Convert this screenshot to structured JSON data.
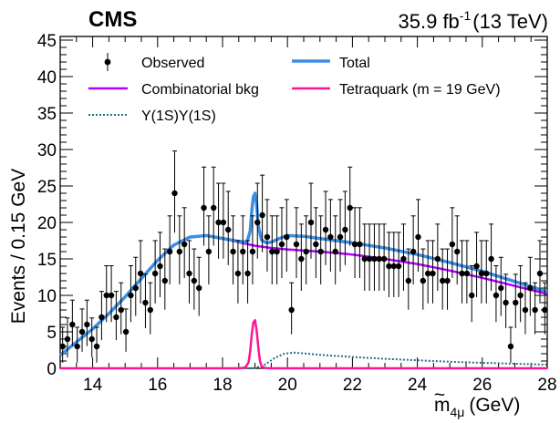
{
  "header": {
    "experiment": "CMS",
    "lumi_value": "35.9 fb",
    "lumi_exp": "-1",
    "energy": "(13 TeV)"
  },
  "chart_data": {
    "type": "scatter",
    "xlabel_main": "m",
    "xlabel_sub": "4μ",
    "xlabel_accent": "~",
    "xlabel_unit": "(GeV)",
    "ylabel": "Events / 0.15 GeV",
    "xlim": [
      13,
      28
    ],
    "ylim": [
      0,
      45.5
    ],
    "x_ticks": [
      14,
      16,
      18,
      20,
      22,
      24,
      26,
      28
    ],
    "y_ticks": [
      0,
      5,
      10,
      15,
      20,
      25,
      30,
      35,
      40,
      45
    ],
    "legend": {
      "placement": "top",
      "observed": "Observed",
      "total": "Total",
      "combinatorial": "Combinatorial bkg",
      "tetraquark": "Tetraquark (m = 19 GeV)",
      "upsilon": "Υ(1S)Υ(1S)"
    },
    "colors": {
      "observed": "#000000",
      "total": "#3b8fe6",
      "combinatorial": "#b300ff",
      "tetraquark": "#ff1493",
      "upsilon": "#1f6f8b"
    },
    "observed": {
      "x": [
        13.0,
        13.15,
        13.3,
        13.45,
        13.6,
        13.75,
        13.9,
        14.05,
        14.2,
        14.35,
        14.5,
        14.65,
        14.8,
        14.95,
        15.1,
        15.25,
        15.4,
        15.55,
        15.7,
        15.85,
        16.0,
        16.15,
        16.3,
        16.45,
        16.6,
        16.75,
        16.9,
        17.05,
        17.2,
        17.35,
        17.5,
        17.65,
        17.8,
        17.95,
        18.1,
        18.25,
        18.4,
        18.55,
        18.7,
        18.85,
        19.0,
        19.15,
        19.3,
        19.45,
        19.6,
        19.75,
        19.9,
        20.05,
        20.2,
        20.35,
        20.5,
        20.65,
        20.8,
        20.95,
        21.1,
        21.25,
        21.4,
        21.55,
        21.7,
        21.85,
        22.0,
        22.15,
        22.3,
        22.45,
        22.6,
        22.75,
        22.9,
        23.05,
        23.2,
        23.35,
        23.5,
        23.65,
        23.8,
        23.95,
        24.1,
        24.25,
        24.4,
        24.55,
        24.7,
        24.85,
        25.0,
        25.15,
        25.3,
        25.45,
        25.6,
        25.75,
        25.9,
        26.05,
        26.2,
        26.35,
        26.5,
        26.65,
        26.8,
        26.95,
        27.1,
        27.25,
        27.4,
        27.55,
        27.7,
        27.85
      ],
      "y": [
        3,
        4,
        6,
        3,
        5,
        6,
        4,
        3,
        7,
        10,
        10,
        7,
        8,
        5,
        10,
        11,
        13,
        9,
        8,
        13,
        14,
        12,
        16,
        24,
        16,
        17,
        13,
        12,
        11,
        22,
        16,
        22,
        20,
        20,
        19,
        16,
        13,
        16,
        13,
        16,
        20,
        21,
        18,
        16,
        16,
        17,
        18,
        8,
        17,
        15,
        16,
        20,
        17,
        16,
        19,
        18,
        16,
        18,
        19,
        22,
        17,
        17,
        15,
        15,
        15,
        15,
        15,
        14,
        14,
        14,
        15,
        12,
        16,
        18,
        12,
        13,
        13,
        15,
        12,
        12,
        17,
        16,
        13,
        13,
        10,
        14,
        13,
        13,
        15,
        10,
        11,
        9,
        3,
        9,
        10,
        8,
        11,
        8,
        13,
        8
      ]
    },
    "combinatorial_bkg": {
      "x": [
        13.0,
        13.5,
        14.0,
        14.5,
        15.0,
        15.5,
        16.0,
        16.5,
        17.0,
        17.5,
        18.0,
        18.5,
        19.0,
        19.5,
        20.0,
        21.0,
        22.0,
        23.0,
        24.0,
        25.0,
        26.0,
        27.0,
        28.0
      ],
      "y": [
        1.8,
        3.6,
        5.4,
        7.5,
        9.8,
        12.3,
        14.8,
        16.9,
        18.0,
        18.2,
        17.8,
        17.3,
        16.8,
        16.5,
        16.3,
        16.0,
        15.6,
        15.0,
        14.3,
        13.4,
        12.4,
        11.3,
        10.2
      ]
    },
    "total": {
      "x": [
        13.0,
        13.5,
        14.0,
        14.5,
        15.0,
        15.5,
        16.0,
        16.5,
        17.0,
        17.5,
        18.0,
        18.5,
        18.75,
        18.85,
        18.9,
        18.95,
        19.0,
        19.05,
        19.1,
        19.2,
        19.35,
        19.5,
        19.75,
        20.0,
        20.5,
        21.0,
        22.0,
        23.0,
        24.0,
        25.0,
        26.0,
        27.0,
        28.0
      ],
      "y": [
        1.8,
        3.6,
        5.4,
        7.5,
        9.8,
        12.3,
        14.8,
        16.9,
        18.0,
        18.2,
        17.8,
        17.4,
        17.3,
        18.8,
        21.5,
        23.5,
        24.0,
        22.5,
        19.5,
        17.6,
        17.2,
        17.3,
        17.8,
        18.2,
        18.1,
        17.8,
        17.2,
        16.5,
        15.6,
        14.5,
        13.3,
        11.9,
        10.5
      ]
    },
    "tetraquark": {
      "x": [
        13.0,
        18.5,
        18.7,
        18.8,
        18.85,
        18.9,
        18.95,
        19.0,
        19.05,
        19.1,
        19.15,
        19.2,
        19.3,
        19.5,
        28.0
      ],
      "y": [
        0,
        0,
        0.1,
        0.8,
        2.3,
        4.6,
        6.3,
        6.6,
        5.2,
        2.9,
        1.1,
        0.3,
        0.05,
        0,
        0
      ]
    },
    "upsilon": {
      "x": [
        13.0,
        18.7,
        19.0,
        19.3,
        19.6,
        19.9,
        20.2,
        20.5,
        21.0,
        22.0,
        23.0,
        24.0,
        25.0,
        26.0,
        27.0,
        28.0
      ],
      "y": [
        0,
        0,
        0.05,
        0.5,
        1.4,
        2.0,
        2.15,
        2.05,
        1.85,
        1.55,
        1.3,
        1.1,
        0.9,
        0.75,
        0.62,
        0.5
      ]
    }
  }
}
